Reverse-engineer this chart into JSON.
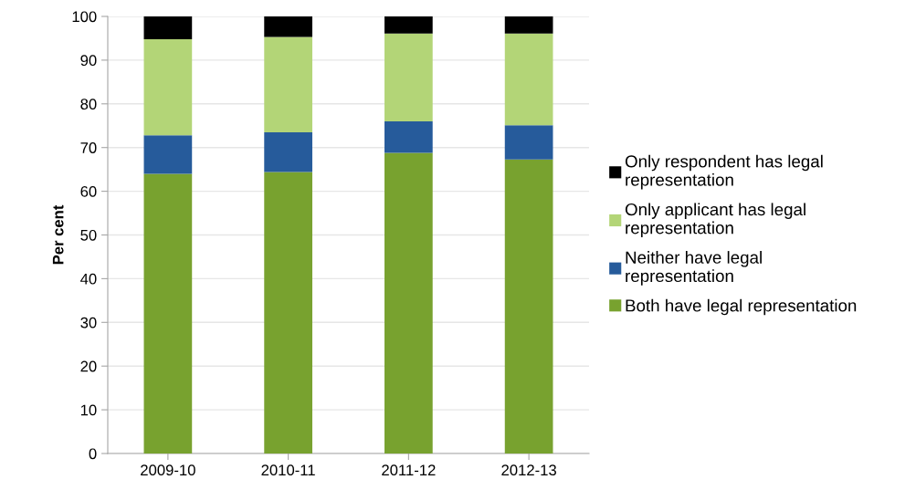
{
  "chart_data": {
    "type": "bar",
    "stacked": true,
    "ylabel": "Per cent",
    "categories": [
      "2009-10",
      "2010-11",
      "2011-12",
      "2012-13"
    ],
    "series": [
      {
        "name": "Both have legal representation",
        "color": "#78a22f",
        "values": [
          64,
          64.4,
          68.8,
          67.3
        ]
      },
      {
        "name": "Neither have legal\nrepresentation",
        "color": "#265b9b",
        "values": [
          8.8,
          9.1,
          7.2,
          7.8
        ]
      },
      {
        "name": "Only applicant has legal\nrepresentation",
        "color": "#b3d577",
        "values": [
          22,
          21.8,
          20.1,
          21.0
        ]
      },
      {
        "name": "Only respondent has legal\nrepresentation",
        "color": "#000000",
        "values": [
          5.2,
          4.7,
          3.9,
          3.9
        ]
      }
    ],
    "ylim": [
      0,
      100
    ],
    "yticks": [
      0,
      10,
      20,
      30,
      40,
      50,
      60,
      70,
      80,
      90,
      100
    ],
    "grid": "y",
    "legend": "right"
  }
}
